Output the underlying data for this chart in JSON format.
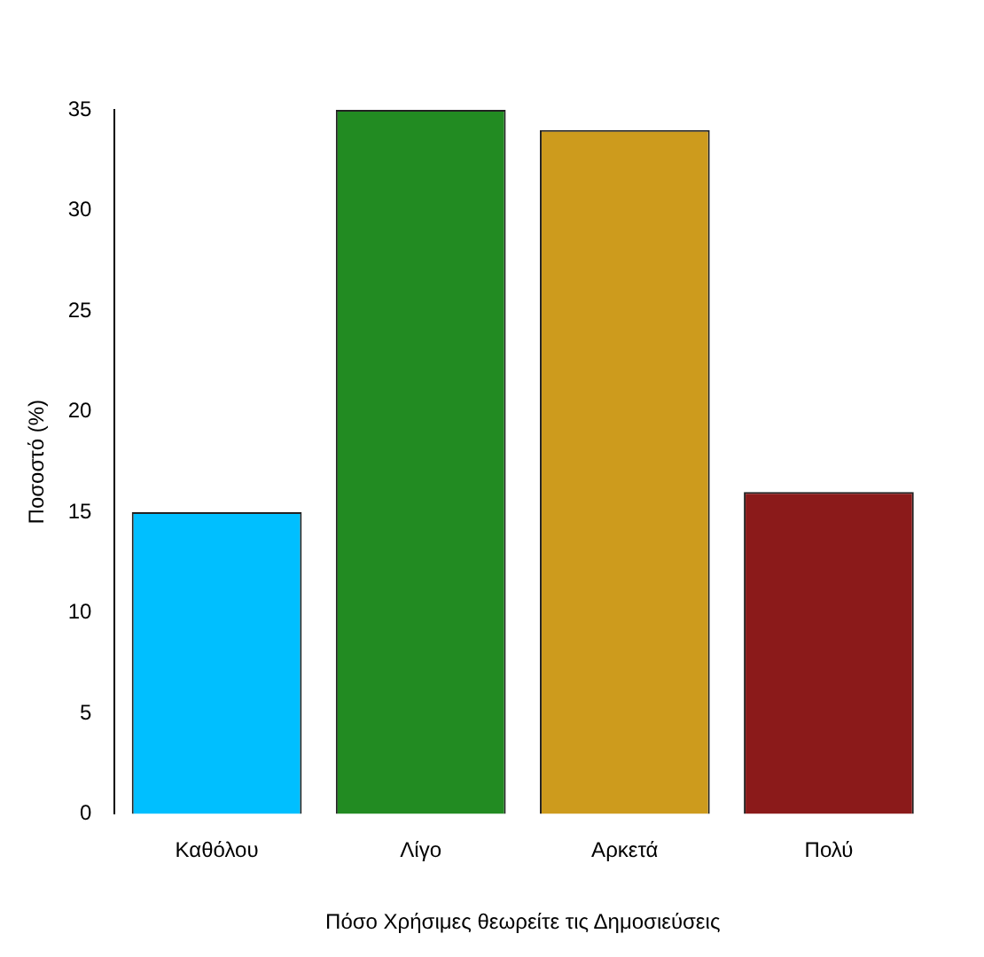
{
  "chart_data": {
    "type": "bar",
    "xlabel": "Πόσο Χρήσιμες θεωρείτε τις Δημοσιεύσεις",
    "ylabel": "Ποσοστό (%)",
    "categories": [
      "Καθόλου",
      "Λίγο",
      "Αρκετά",
      "Πολύ"
    ],
    "values": [
      15,
      35,
      34,
      16
    ],
    "colors": [
      "#00bfff",
      "#228b22",
      "#cd9b1d",
      "#8b1a1a"
    ],
    "ylim": [
      0,
      35
    ],
    "yticks": [
      0,
      5,
      10,
      15,
      20,
      25,
      30,
      35
    ],
    "grid": false,
    "legend": false
  }
}
